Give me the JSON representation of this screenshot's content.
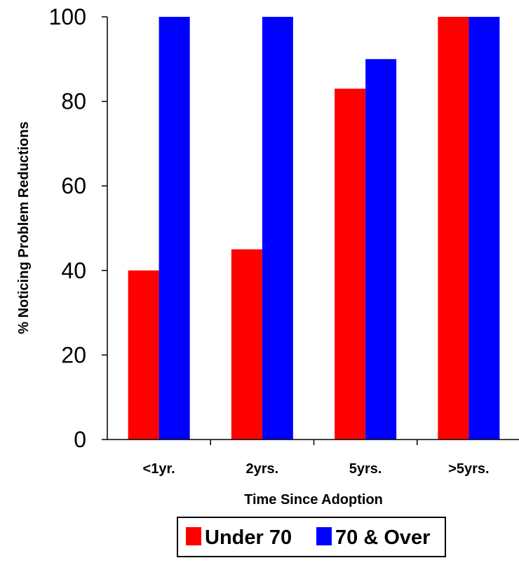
{
  "chart_data": {
    "type": "bar",
    "categories": [
      "<1yr.",
      "2yrs.",
      "5yrs.",
      ">5yrs."
    ],
    "series": [
      {
        "name": "Under 70",
        "values": [
          40,
          45,
          83,
          100
        ],
        "color": "#ff0000"
      },
      {
        "name": "70 & Over",
        "values": [
          100,
          100,
          90,
          100
        ],
        "color": "#0000ff"
      }
    ],
    "xlabel": "Time Since Adoption",
    "ylabel": "% Noticing Problem Reductions",
    "ylim": [
      0,
      100
    ],
    "yticks": [
      0,
      20,
      40,
      60,
      80,
      100
    ],
    "grid": false,
    "legend_position": "bottom-center"
  }
}
